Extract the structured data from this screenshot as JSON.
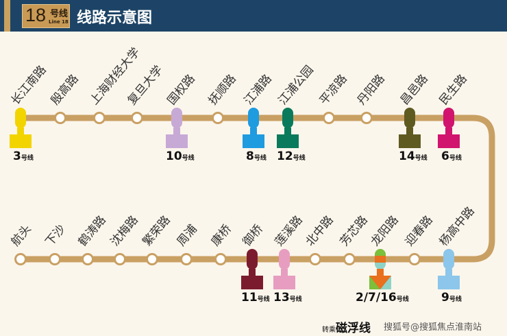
{
  "header": {
    "line_number": "18",
    "line_suffix": "号线",
    "line_en": "Line 18",
    "title": "线路示意图"
  },
  "colors": {
    "track": "#c9a063",
    "header_bg": "#1d4466"
  },
  "top_row": [
    {
      "name": "长江南路",
      "transfer": "3",
      "color": "#f2d400"
    },
    {
      "name": "殷高路"
    },
    {
      "name": "上海财经大学"
    },
    {
      "name": "复旦大学"
    },
    {
      "name": "国权路",
      "transfer": "10",
      "color": "#c7a9d6"
    },
    {
      "name": "抚顺路"
    },
    {
      "name": "江浦路",
      "transfer": "8",
      "color": "#1f9be0"
    },
    {
      "name": "江浦公园",
      "transfer": "12",
      "color": "#0a7a5c"
    },
    {
      "name": "平凉路"
    },
    {
      "name": "丹阳路"
    },
    {
      "name": "昌邑路",
      "transfer": "14",
      "color": "#5f5a20"
    },
    {
      "name": "民生路",
      "transfer": "6",
      "color": "#d1146e"
    }
  ],
  "bottom_row": [
    {
      "name": "航头"
    },
    {
      "name": "下沙"
    },
    {
      "name": "鹤涛路"
    },
    {
      "name": "沈梅路"
    },
    {
      "name": "繁荣路"
    },
    {
      "name": "周浦"
    },
    {
      "name": "康桥"
    },
    {
      "name": "御桥",
      "transfer": "11",
      "color": "#7b1c2e"
    },
    {
      "name": "莲溪路",
      "transfer": "13",
      "color": "#e79dc0"
    },
    {
      "name": "北中路"
    },
    {
      "name": "芳芯路"
    },
    {
      "name": "龙阳路",
      "transfer": "2/7/16",
      "color": "#e8701e",
      "colors": [
        "#7bbf3a",
        "#e8701e",
        "#8fd3c8"
      ]
    },
    {
      "name": "迎春路"
    },
    {
      "name": "杨高中路",
      "transfer": "9",
      "color": "#8cc6ea"
    }
  ],
  "transfer_suffix": "号线",
  "footer": {
    "prefix": "转乘",
    "text": "磁浮线"
  },
  "watermark": "搜狐号@搜狐焦点淮南站"
}
